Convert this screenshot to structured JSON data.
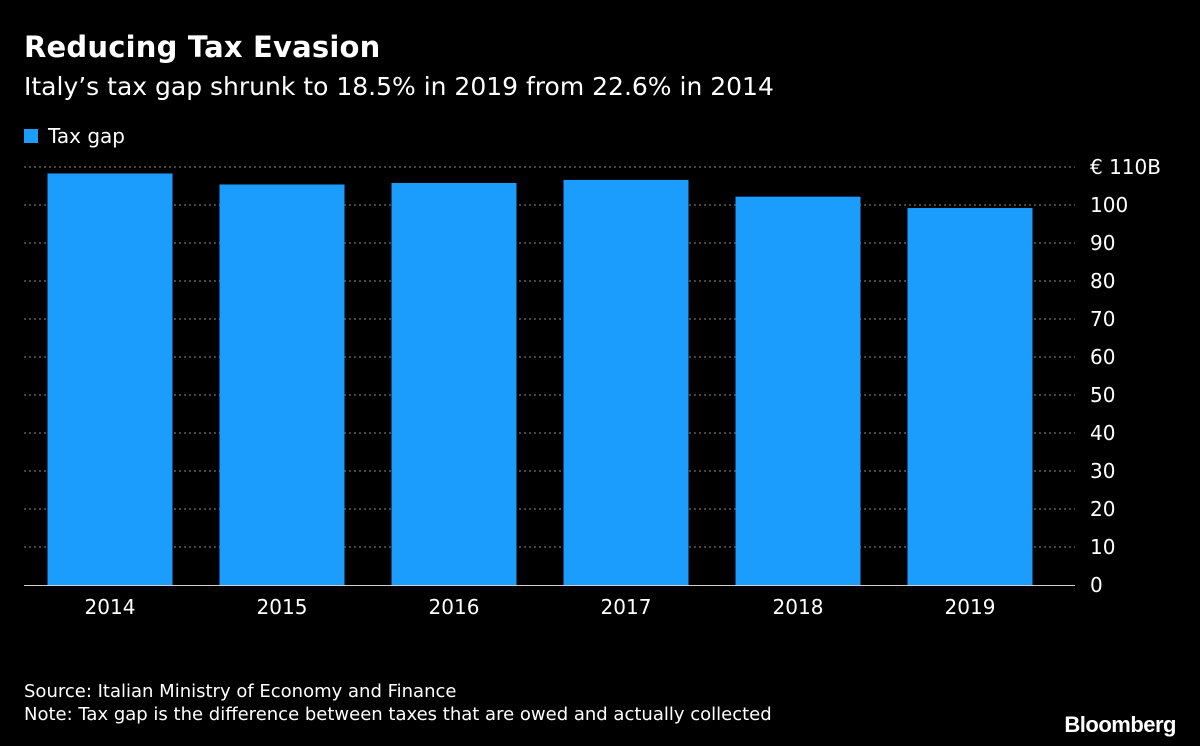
{
  "header": {
    "title": "Reducing Tax Evasion",
    "subtitle": "Italy’s tax gap shrunk to 18.5% in 2019 from 22.6% in 2014"
  },
  "legend": {
    "label": "Tax gap",
    "color": "#1a9dfd"
  },
  "chart_data": {
    "type": "bar",
    "title": "Reducing Tax Evasion",
    "subtitle": "Italy’s tax gap shrunk to 18.5% in 2019 from 22.6% in 2014",
    "categories": [
      "2014",
      "2015",
      "2016",
      "2017",
      "2018",
      "2019"
    ],
    "series": [
      {
        "name": "Tax gap",
        "values": [
          108.3,
          105.4,
          105.8,
          106.6,
          102.2,
          99.2
        ],
        "color": "#1a9dfd"
      }
    ],
    "ylim": [
      0,
      110
    ],
    "yticks": [
      0,
      10,
      20,
      30,
      40,
      50,
      60,
      70,
      80,
      90,
      100,
      110
    ],
    "ytick_labels": [
      "0",
      "10",
      "20",
      "30",
      "40",
      "50",
      "60",
      "70",
      "80",
      "90",
      "100",
      "€ 110B"
    ],
    "y_axis_side": "right",
    "grid": true,
    "xlabel": "",
    "ylabel": ""
  },
  "footer": {
    "source": "Source: Italian Ministry of Economy and Finance",
    "note": "Note: Tax gap is the difference between taxes that are owed and actually collected"
  },
  "brand": "Bloomberg"
}
